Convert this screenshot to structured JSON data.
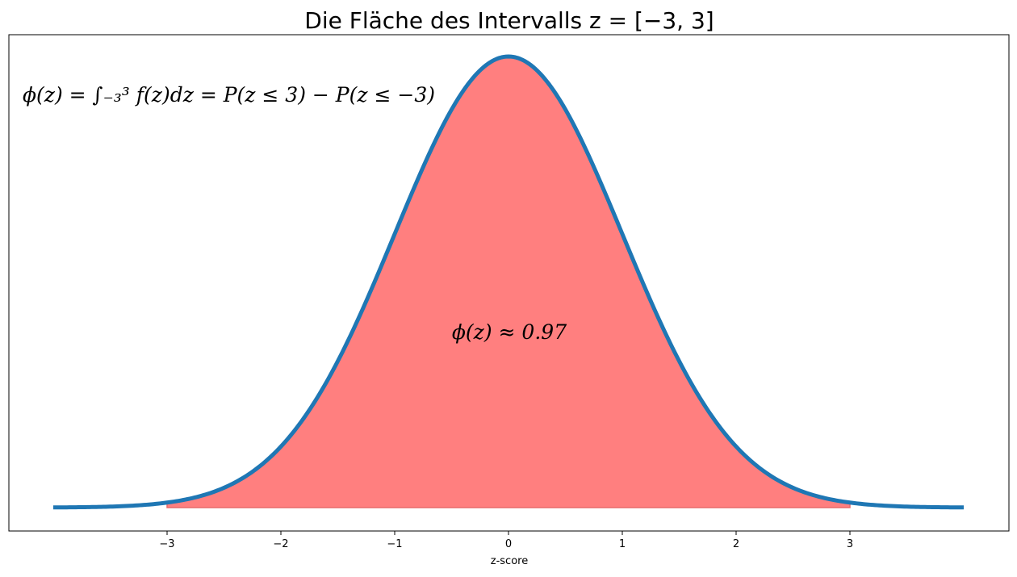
{
  "chart_data": {
    "type": "area",
    "title": "Die Fläche des Intervalls z = [−3, 3]",
    "xlabel": "z-score",
    "ylabel": "",
    "xlim": [
      -4.0,
      4.0
    ],
    "ylim": [
      0,
      0.42
    ],
    "x_ticks": [
      -3,
      -2,
      -1,
      0,
      1,
      2,
      3
    ],
    "x_tick_labels": [
      "−3",
      "−2",
      "−1",
      "0",
      "1",
      "2",
      "3"
    ],
    "y_ticks_shown": false,
    "grid": false,
    "series": [
      {
        "role": "curve",
        "color": "#1f77b4",
        "x": [
          -4.0,
          -3.5,
          -3.0,
          -2.5,
          -2.0,
          -1.5,
          -1.0,
          -0.5,
          0.0,
          0.5,
          1.0,
          1.5,
          2.0,
          2.5,
          3.0,
          3.5,
          4.0
        ],
        "y": [
          0.0001,
          0.0009,
          0.0044,
          0.0175,
          0.054,
          0.1295,
          0.242,
          0.3521,
          0.3989,
          0.3521,
          0.242,
          0.1295,
          0.054,
          0.0175,
          0.0044,
          0.0009,
          0.0001
        ]
      }
    ],
    "shaded_region": {
      "from": -3,
      "to": 3,
      "color": "#ff7f7f",
      "value": 0.97
    },
    "annotations": {
      "formula": "ϕ(z) = ∫₋₃³ f(z)dz = P(z ≤ 3) − P(z ≤ −3)",
      "area_label": "ϕ(z) ≈ 0.97"
    }
  }
}
